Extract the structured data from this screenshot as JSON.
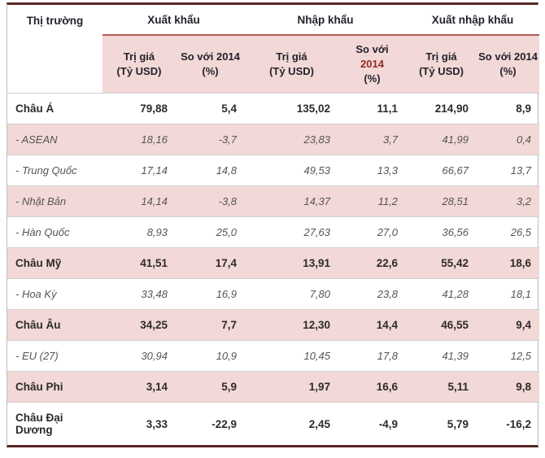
{
  "header": {
    "market": "Thị trường",
    "groups": [
      {
        "label": "Xuất khẩu"
      },
      {
        "label": "Nhập khẩu"
      },
      {
        "label": "Xuất nhập khẩu"
      }
    ],
    "sub_value_line1": "Trị giá",
    "sub_value_line2": "(Tỷ USD)",
    "sub_vs_line1": "So với 2014",
    "sub_vs_line2": "(%)",
    "sub_vs_nk_line1": "So với",
    "sub_vs_nk_line2": "2014",
    "sub_vs_nk_line3": "(%)"
  },
  "rows": [
    {
      "market": "Châu Á",
      "style": "bold",
      "values": [
        "79,88",
        "5,4",
        "135,02",
        "11,1",
        "214,90",
        "8,9"
      ]
    },
    {
      "market": "- ASEAN",
      "style": "sub",
      "values": [
        "18,16",
        "-3,7",
        "23,83",
        "3,7",
        "41,99",
        "0,4"
      ]
    },
    {
      "market": "- Trung Quốc",
      "style": "sub",
      "values": [
        "17,14",
        "14,8",
        "49,53",
        "13,3",
        "66,67",
        "13,7"
      ]
    },
    {
      "market": "- Nhật Bản",
      "style": "sub",
      "values": [
        "14,14",
        "-3,8",
        "14,37",
        "11,2",
        "28,51",
        "3,2"
      ]
    },
    {
      "market": "- Hàn Quốc",
      "style": "sub",
      "values": [
        "8,93",
        "25,0",
        "27,63",
        "27,0",
        "36,56",
        "26,5"
      ]
    },
    {
      "market": "Châu Mỹ",
      "style": "bold",
      "values": [
        "41,51",
        "17,4",
        "13,91",
        "22,6",
        "55,42",
        "18,6"
      ]
    },
    {
      "market": "- Hoa Kỳ",
      "style": "sub",
      "values": [
        "33,48",
        "16,9",
        "7,80",
        "23,8",
        "41,28",
        "18,1"
      ]
    },
    {
      "market": "Châu Âu",
      "style": "bold",
      "values": [
        "34,25",
        "7,7",
        "12,30",
        "14,4",
        "46,55",
        "9,4"
      ]
    },
    {
      "market": "- EU (27)",
      "style": "sub",
      "values": [
        "30,94",
        "10,9",
        "10,45",
        "17,8",
        "41,39",
        "12,5"
      ]
    },
    {
      "market": "Châu Phi",
      "style": "bold",
      "values": [
        "3,14",
        "5,9",
        "1,97",
        "16,6",
        "5,11",
        "9,8"
      ]
    },
    {
      "market": "Châu Đại Dương",
      "style": "bold",
      "values": [
        "3,33",
        "-22,9",
        "2,45",
        "-4,9",
        "5,79",
        "-16,2"
      ]
    }
  ],
  "colors": {
    "pink": "#f2d8d6",
    "maroon_border": "#5a2626",
    "subheader_top_border": "#b25b56",
    "row_line": "#cfcfcf",
    "side_border": "#bdbdbd",
    "header_text": "#22222c",
    "row_text": "#2b2b2b",
    "sub_row_text": "#555555",
    "accent_red": "#8f2a28"
  }
}
